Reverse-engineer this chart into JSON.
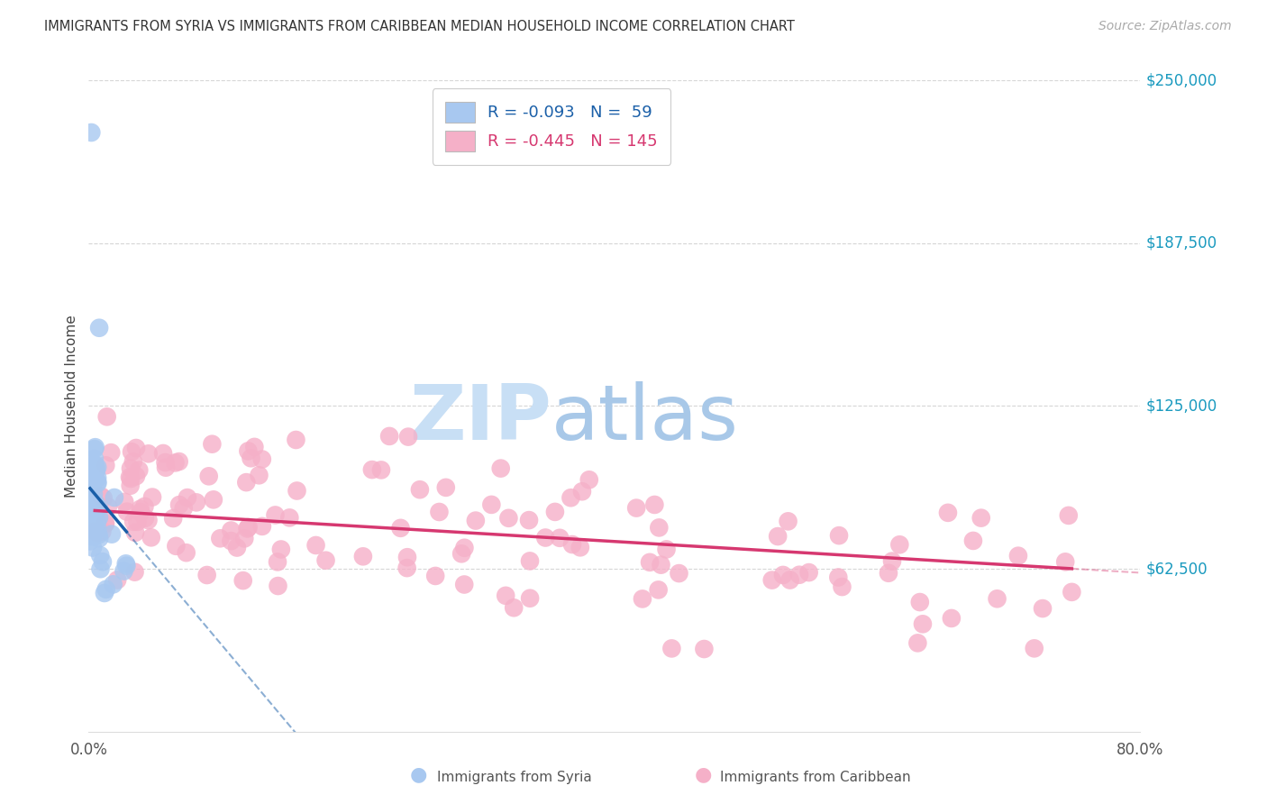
{
  "title": "IMMIGRANTS FROM SYRIA VS IMMIGRANTS FROM CARIBBEAN MEDIAN HOUSEHOLD INCOME CORRELATION CHART",
  "source": "Source: ZipAtlas.com",
  "ylabel": "Median Household Income",
  "xlim": [
    0.0,
    0.8
  ],
  "ylim": [
    0,
    250000
  ],
  "syria_color": "#a8c8f0",
  "syria_line_color": "#1a5fa8",
  "caribbean_color": "#f5b0c8",
  "caribbean_line_color": "#d63870",
  "background_color": "#ffffff",
  "grid_color": "#cccccc",
  "watermark_text": "ZIPatlas",
  "legend_entry1": "R = -0.093   N =  59",
  "legend_entry2": "R = -0.445   N = 145",
  "ytick_vals": [
    62500,
    125000,
    187500,
    250000
  ],
  "ytick_labels": [
    "$62,500",
    "$125,000",
    "$187,500",
    "$250,000"
  ],
  "right_label_color": "#1a9abf",
  "xtick_vals": [
    0.0,
    0.2,
    0.4,
    0.6,
    0.8
  ],
  "xtick_labels": [
    "0.0%",
    "",
    "",
    "",
    "80.0%"
  ],
  "legend_text_color1": "#1a5fa8",
  "legend_text_color2": "#d63870"
}
